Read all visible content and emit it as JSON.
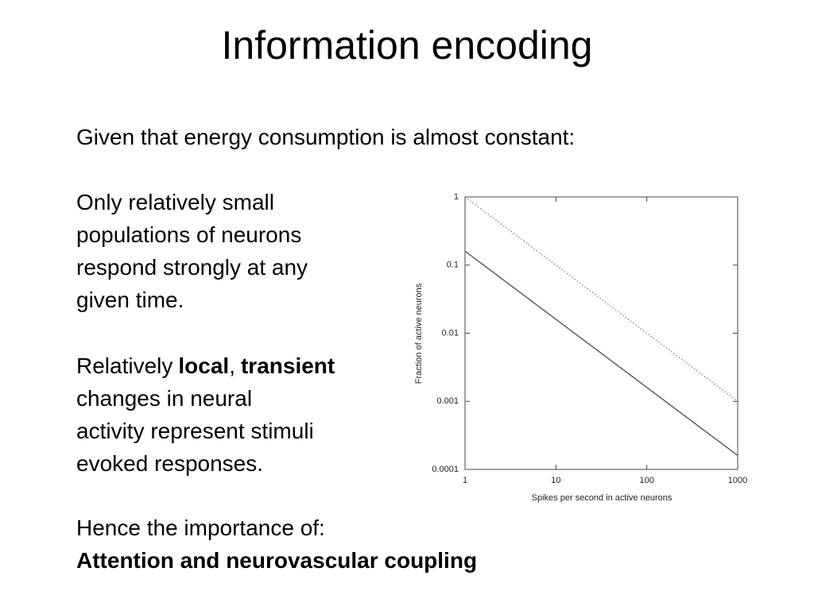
{
  "slide": {
    "title": "Information encoding",
    "intro": "Given that energy consumption is almost constant:",
    "paragraph1": [
      "Only relatively small",
      "populations of neurons",
      "respond strongly at any",
      "given time."
    ],
    "paragraph2": {
      "lead": "Relatively",
      "bold1": "local",
      "sep": ",",
      "bold2": "transient",
      "lines": [
        "changes in neural",
        "activity represent stimuli",
        "evoked responses."
      ]
    },
    "conclusion": "Hence the importance of:",
    "emphasis": "Attention and neurovascular coupling"
  },
  "chart_data": {
    "type": "line",
    "xlabel": "Spikes per second in active neurons",
    "ylabel": "Fraction of active neurons",
    "x": [
      1,
      1000
    ],
    "series": [
      {
        "color": "#555555",
        "linestyle": "solid",
        "values": [
          0.16,
          0.00016
        ]
      },
      {
        "color": "#777777",
        "linestyle": "dotted",
        "values": [
          1,
          0.001
        ]
      }
    ],
    "xscale": "log",
    "yscale": "log",
    "xlim": [
      1,
      1000
    ],
    "ylim": [
      0.0001,
      1
    ],
    "xticks": [
      1,
      10,
      100,
      1000
    ],
    "yticks": [
      0.0001,
      0.001,
      0.01,
      0.1,
      1
    ]
  }
}
